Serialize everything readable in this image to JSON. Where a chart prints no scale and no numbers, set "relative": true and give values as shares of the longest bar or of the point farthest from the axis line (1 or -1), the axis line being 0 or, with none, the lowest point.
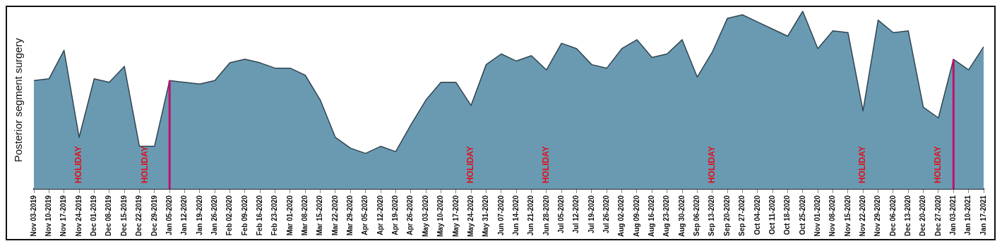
{
  "chart_data": {
    "type": "area",
    "ylabel": "Posterior segment surgery",
    "relative": true,
    "grid": false,
    "legend": false,
    "marker": "none",
    "tick_labels": "x",
    "categories": [
      "Nov 03-2019",
      "Nov 10-2019",
      "Nov 17-2019",
      "Nov 24-2019",
      "Dec 01-2019",
      "Dec 08-2019",
      "Dec 15-2019",
      "Dec 22-2019",
      "Dec 29-2019",
      "Jan 05-2020",
      "Jan 12-2020",
      "Jan 19-2020",
      "Jan 26-2020",
      "Feb 02-2020",
      "Feb 09-2020",
      "Feb 16-2020",
      "Feb 23-2020",
      "Mar 01-2020",
      "Mar 08-2020",
      "Mar 15-2020",
      "Mar 22-2020",
      "Mar 29-2020",
      "Apr 05-2020",
      "Apr 12-2020",
      "Apr 19-2020",
      "Apr 26-2020",
      "May 03-2020",
      "May 10-2020",
      "May 17-2020",
      "May 24-2020",
      "May 31-2020",
      "Jun 07-2020",
      "Jun 14-2020",
      "Jun 21-2020",
      "Jun 28-2020",
      "Jul 05-2020",
      "Jul 12-2020",
      "Jul 19-2020",
      "Jul 26-2020",
      "Aug 02-2020",
      "Aug 09-2020",
      "Aug 16-2020",
      "Aug 23-2020",
      "Aug 30-2020",
      "Sep 06-2020",
      "Sep 13-2020",
      "Sep 20-2020",
      "Sep 27-2020",
      "Oct 04-2020",
      "Oct 11-2020",
      "Oct 18-2020",
      "Oct 25-2020",
      "Nov 01-2020",
      "Nov 08-2020",
      "Nov 15-2020",
      "Nov 22-2020",
      "Nov 29-2020",
      "Dec 06-2020",
      "Dec 13-2020",
      "Dec 20-2020",
      "Dec 27-2020",
      "Jan 03-2021",
      "Jan 10-2021",
      "Jan 17-2021"
    ],
    "series": [
      {
        "color": "#6a9ab2",
        "values": [
          0.61,
          0.62,
          0.78,
          0.29,
          0.62,
          0.6,
          0.69,
          0.24,
          0.24,
          0.61,
          0.6,
          0.59,
          0.61,
          0.71,
          0.73,
          0.71,
          0.68,
          0.68,
          0.64,
          0.5,
          0.29,
          0.23,
          0.2,
          0.24,
          0.21,
          0.36,
          0.5,
          0.6,
          0.6,
          0.47,
          0.7,
          0.76,
          0.72,
          0.75,
          0.67,
          0.82,
          0.79,
          0.7,
          0.68,
          0.79,
          0.84,
          0.74,
          0.76,
          0.84,
          0.63,
          0.77,
          0.96,
          0.98,
          0.94,
          0.9,
          0.86,
          1,
          0.79,
          0.89,
          0.88,
          0.44,
          0.95,
          0.88,
          0.89,
          0.46,
          0.4,
          0.73,
          0.67,
          0.8
        ]
      }
    ],
    "ref_lines": [
      {
        "axis": "x",
        "value": "Jan 05-2020",
        "color": "#c0106a"
      },
      {
        "axis": "x",
        "value": "Jan 03-2021",
        "color": "#c0106a"
      }
    ],
    "annotations": [
      "HOLIDAY",
      "HOLIDAY",
      "HOLIDAY",
      "HOLIDAY",
      "HOLIDAY",
      "HOLIDAY",
      "HOLIDAY"
    ]
  }
}
